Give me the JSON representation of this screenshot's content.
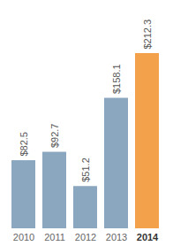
{
  "chart_data": {
    "type": "bar",
    "categories": [
      "2010",
      "2011",
      "2012",
      "2013",
      "2014"
    ],
    "values": [
      82.5,
      92.7,
      51.2,
      158.1,
      212.3
    ],
    "value_labels": [
      "$82.5",
      "$92.7",
      "$51.2",
      "$158.1",
      "$212.3"
    ],
    "colors": [
      "#8ba7bf",
      "#8ba7bf",
      "#8ba7bf",
      "#8ba7bf",
      "#f4a14b"
    ],
    "data_labels": true,
    "tick_labels": "x"
  }
}
